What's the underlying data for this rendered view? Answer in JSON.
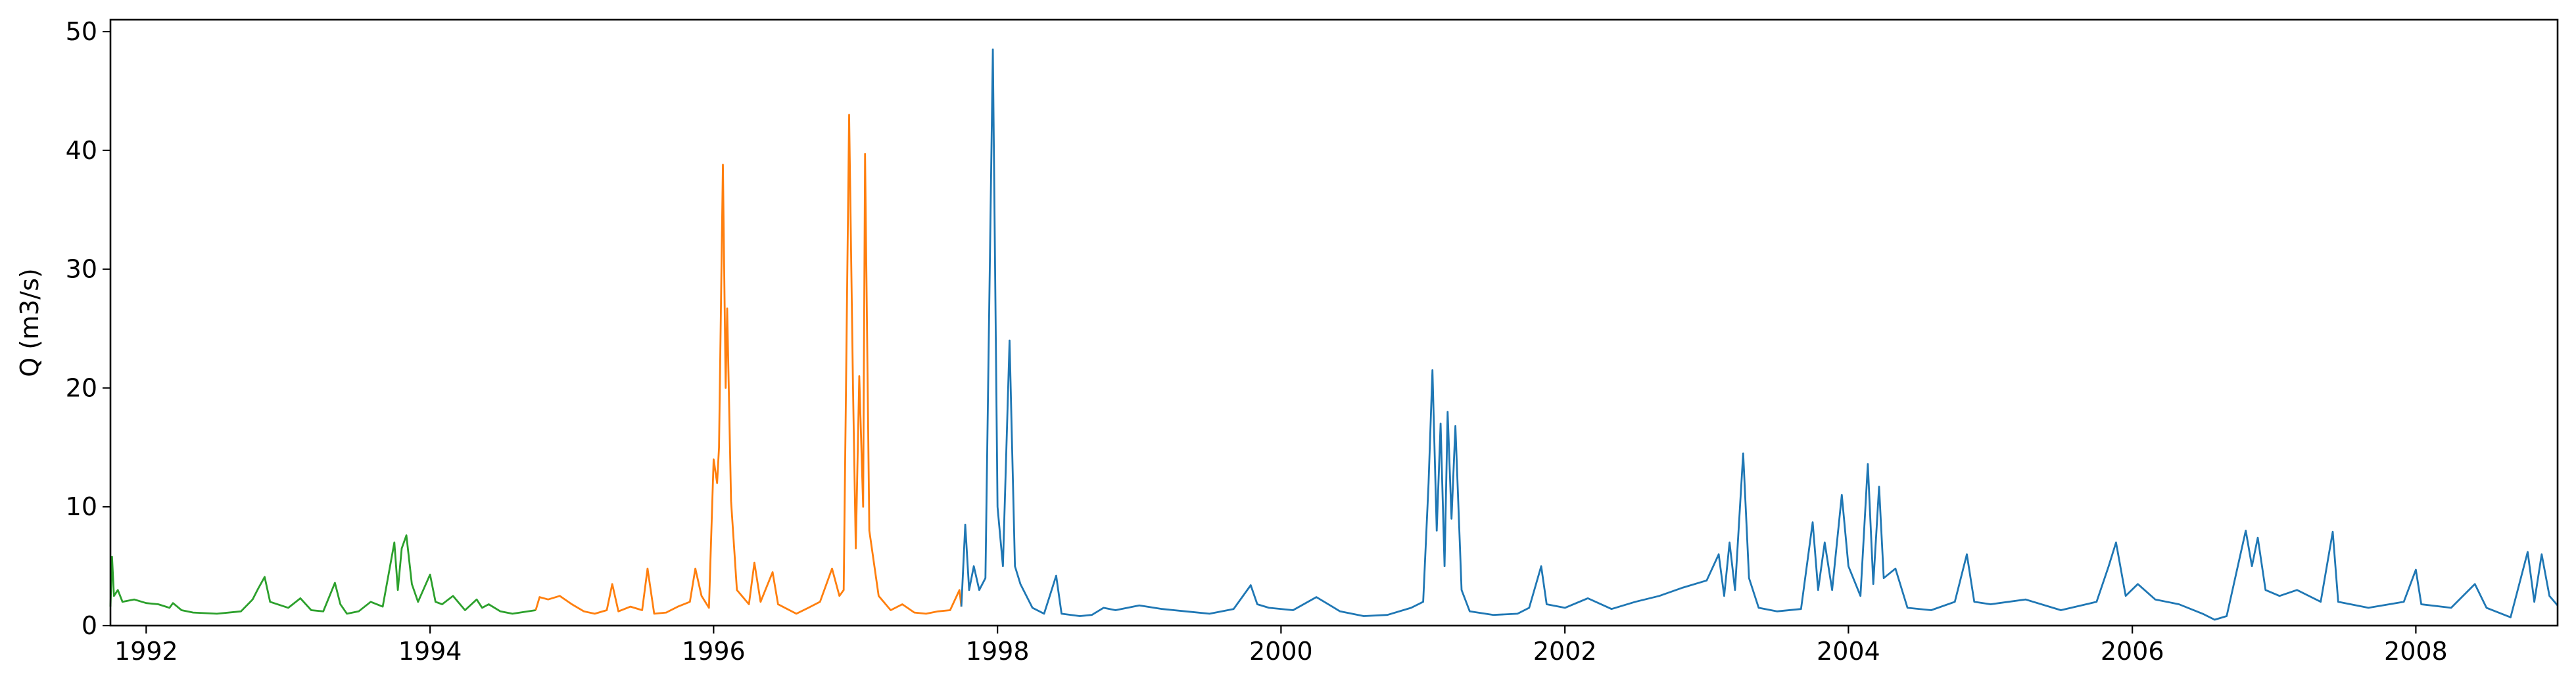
{
  "chart_data": {
    "type": "line",
    "title": "",
    "xlabel": "",
    "ylabel": "Q (m3/s)",
    "xlim": [
      "1991-10-01",
      "2008-12-31"
    ],
    "ylim": [
      0,
      51
    ],
    "x_ticks": [
      "1992",
      "1994",
      "1996",
      "1998",
      "2000",
      "2002",
      "2004",
      "2006",
      "2008"
    ],
    "y_ticks": [
      "0",
      "10",
      "20",
      "30",
      "40",
      "50"
    ],
    "grid": false,
    "legend": "none",
    "series": [
      {
        "color": "#2ca02c",
        "points": [
          [
            "1991-10-01",
            1.6
          ],
          [
            "1991-10-05",
            5.8
          ],
          [
            "1991-10-10",
            2.5
          ],
          [
            "1991-10-20",
            3.0
          ],
          [
            "1991-11-01",
            2.0
          ],
          [
            "1991-12-01",
            2.2
          ],
          [
            "1992-01-01",
            1.9
          ],
          [
            "1992-02-01",
            1.8
          ],
          [
            "1992-03-01",
            1.5
          ],
          [
            "1992-03-10",
            1.9
          ],
          [
            "1992-04-01",
            1.3
          ],
          [
            "1992-05-01",
            1.1
          ],
          [
            "1992-07-01",
            1.0
          ],
          [
            "1992-09-01",
            1.2
          ],
          [
            "1992-10-01",
            2.2
          ],
          [
            "1992-10-15",
            3.1
          ],
          [
            "1992-11-01",
            4.1
          ],
          [
            "1992-11-15",
            2.0
          ],
          [
            "1993-01-01",
            1.5
          ],
          [
            "1993-02-01",
            2.3
          ],
          [
            "1993-03-01",
            1.3
          ],
          [
            "1993-04-01",
            1.2
          ],
          [
            "1993-05-01",
            3.6
          ],
          [
            "1993-05-15",
            1.8
          ],
          [
            "1993-06-01",
            1.0
          ],
          [
            "1993-07-01",
            1.2
          ],
          [
            "1993-08-01",
            2.0
          ],
          [
            "1993-09-01",
            1.6
          ],
          [
            "1993-10-01",
            7.0
          ],
          [
            "1993-10-10",
            3.0
          ],
          [
            "1993-10-20",
            6.5
          ],
          [
            "1993-11-01",
            7.6
          ],
          [
            "1993-11-15",
            3.5
          ],
          [
            "1993-12-01",
            2.0
          ],
          [
            "1994-01-01",
            4.3
          ],
          [
            "1994-01-15",
            2.0
          ],
          [
            "1994-02-01",
            1.8
          ],
          [
            "1994-03-01",
            2.5
          ],
          [
            "1994-04-01",
            1.3
          ],
          [
            "1994-05-01",
            2.2
          ],
          [
            "1994-05-15",
            1.5
          ],
          [
            "1994-06-01",
            1.8
          ],
          [
            "1994-07-01",
            1.2
          ],
          [
            "1994-08-01",
            1.0
          ],
          [
            "1994-09-30",
            1.3
          ]
        ]
      },
      {
        "color": "#ff7f0e",
        "points": [
          [
            "1994-09-30",
            1.3
          ],
          [
            "1994-10-10",
            2.4
          ],
          [
            "1994-11-01",
            2.2
          ],
          [
            "1994-12-01",
            2.5
          ],
          [
            "1995-01-01",
            1.8
          ],
          [
            "1995-02-01",
            1.2
          ],
          [
            "1995-03-01",
            1.0
          ],
          [
            "1995-04-01",
            1.3
          ],
          [
            "1995-04-15",
            3.5
          ],
          [
            "1995-05-01",
            1.2
          ],
          [
            "1995-06-01",
            1.6
          ],
          [
            "1995-07-01",
            1.3
          ],
          [
            "1995-07-15",
            4.8
          ],
          [
            "1995-08-01",
            1.0
          ],
          [
            "1995-09-01",
            1.1
          ],
          [
            "1995-10-01",
            1.6
          ],
          [
            "1995-11-01",
            2.0
          ],
          [
            "1995-11-15",
            4.8
          ],
          [
            "1995-12-01",
            2.5
          ],
          [
            "1995-12-20",
            1.5
          ],
          [
            "1996-01-01",
            14.0
          ],
          [
            "1996-01-10",
            12.0
          ],
          [
            "1996-01-15",
            15.0
          ],
          [
            "1996-01-25",
            38.8
          ],
          [
            "1996-02-01",
            20.0
          ],
          [
            "1996-02-05",
            26.7
          ],
          [
            "1996-02-15",
            10.5
          ],
          [
            "1996-03-01",
            3.0
          ],
          [
            "1996-04-01",
            1.8
          ],
          [
            "1996-04-15",
            5.3
          ],
          [
            "1996-05-01",
            2.0
          ],
          [
            "1996-06-01",
            4.5
          ],
          [
            "1996-06-15",
            1.8
          ],
          [
            "1996-08-01",
            1.0
          ],
          [
            "1996-09-01",
            1.5
          ],
          [
            "1996-10-01",
            2.0
          ],
          [
            "1996-11-01",
            4.8
          ],
          [
            "1996-11-20",
            2.5
          ],
          [
            "1996-12-01",
            3.0
          ],
          [
            "1996-12-15",
            43.0
          ],
          [
            "1996-12-25",
            20.0
          ],
          [
            "1997-01-01",
            6.5
          ],
          [
            "1997-01-10",
            21.0
          ],
          [
            "1997-01-20",
            10.0
          ],
          [
            "1997-01-25",
            39.7
          ],
          [
            "1997-02-05",
            8.0
          ],
          [
            "1997-03-01",
            2.5
          ],
          [
            "1997-04-01",
            1.3
          ],
          [
            "1997-05-01",
            1.8
          ],
          [
            "1997-06-01",
            1.1
          ],
          [
            "1997-07-01",
            1.0
          ],
          [
            "1997-08-01",
            1.2
          ],
          [
            "1997-09-01",
            1.3
          ],
          [
            "1997-09-25",
            3.0
          ],
          [
            "1997-09-30",
            1.6
          ]
        ]
      },
      {
        "color": "#1f77b4",
        "points": [
          [
            "1997-09-30",
            1.6
          ],
          [
            "1997-10-10",
            8.5
          ],
          [
            "1997-10-20",
            3.0
          ],
          [
            "1997-11-01",
            5.0
          ],
          [
            "1997-11-15",
            3.0
          ],
          [
            "1997-12-01",
            4.0
          ],
          [
            "1997-12-20",
            48.5
          ],
          [
            "1998-01-01",
            10.0
          ],
          [
            "1998-01-15",
            5.0
          ],
          [
            "1998-02-01",
            24.0
          ],
          [
            "1998-02-15",
            5.0
          ],
          [
            "1998-03-01",
            3.5
          ],
          [
            "1998-04-01",
            1.5
          ],
          [
            "1998-05-01",
            1.0
          ],
          [
            "1998-06-01",
            4.2
          ],
          [
            "1998-06-15",
            1.0
          ],
          [
            "1998-08-01",
            0.8
          ],
          [
            "1998-09-01",
            0.9
          ],
          [
            "1998-10-01",
            1.5
          ],
          [
            "1998-11-01",
            1.3
          ],
          [
            "1999-01-01",
            1.7
          ],
          [
            "1999-03-01",
            1.4
          ],
          [
            "1999-05-01",
            1.2
          ],
          [
            "1999-07-01",
            1.0
          ],
          [
            "1999-09-01",
            1.4
          ],
          [
            "1999-10-15",
            3.4
          ],
          [
            "1999-11-01",
            1.8
          ],
          [
            "1999-12-01",
            1.5
          ],
          [
            "2000-02-01",
            1.3
          ],
          [
            "2000-04-01",
            2.4
          ],
          [
            "2000-06-01",
            1.2
          ],
          [
            "2000-08-01",
            0.8
          ],
          [
            "2000-10-01",
            0.9
          ],
          [
            "2000-12-01",
            1.5
          ],
          [
            "2001-01-01",
            2.0
          ],
          [
            "2001-01-15",
            12.0
          ],
          [
            "2001-01-25",
            21.5
          ],
          [
            "2001-02-05",
            8.0
          ],
          [
            "2001-02-15",
            17.0
          ],
          [
            "2001-02-25",
            5.0
          ],
          [
            "2001-03-05",
            18.0
          ],
          [
            "2001-03-15",
            9.0
          ],
          [
            "2001-03-25",
            16.8
          ],
          [
            "2001-04-10",
            3.0
          ],
          [
            "2001-05-01",
            1.2
          ],
          [
            "2001-07-01",
            0.9
          ],
          [
            "2001-09-01",
            1.0
          ],
          [
            "2001-10-01",
            1.5
          ],
          [
            "2001-11-01",
            5.0
          ],
          [
            "2001-11-15",
            1.8
          ],
          [
            "2002-01-01",
            1.5
          ],
          [
            "2002-03-01",
            2.3
          ],
          [
            "2002-05-01",
            1.4
          ],
          [
            "2002-07-01",
            2.0
          ],
          [
            "2002-09-01",
            2.5
          ],
          [
            "2002-11-01",
            3.2
          ],
          [
            "2003-01-01",
            3.8
          ],
          [
            "2003-02-01",
            6.0
          ],
          [
            "2003-02-15",
            2.5
          ],
          [
            "2003-03-01",
            7.0
          ],
          [
            "2003-03-15",
            3.0
          ],
          [
            "2003-04-05",
            14.5
          ],
          [
            "2003-04-20",
            4.0
          ],
          [
            "2003-05-15",
            1.5
          ],
          [
            "2003-07-01",
            1.2
          ],
          [
            "2003-09-01",
            1.4
          ],
          [
            "2003-10-01",
            8.7
          ],
          [
            "2003-10-15",
            3.0
          ],
          [
            "2003-11-01",
            7.0
          ],
          [
            "2003-11-20",
            3.0
          ],
          [
            "2003-12-15",
            11.0
          ],
          [
            "2004-01-01",
            5.0
          ],
          [
            "2004-02-01",
            2.5
          ],
          [
            "2004-02-20",
            13.6
          ],
          [
            "2004-03-05",
            3.5
          ],
          [
            "2004-03-20",
            11.7
          ],
          [
            "2004-04-01",
            4.0
          ],
          [
            "2004-05-01",
            4.8
          ],
          [
            "2004-06-01",
            1.5
          ],
          [
            "2004-08-01",
            1.3
          ],
          [
            "2004-10-01",
            2.0
          ],
          [
            "2004-11-01",
            6.0
          ],
          [
            "2004-11-20",
            2.0
          ],
          [
            "2005-01-01",
            1.8
          ],
          [
            "2005-04-01",
            2.2
          ],
          [
            "2005-07-01",
            1.3
          ],
          [
            "2005-10-01",
            2.0
          ],
          [
            "2005-11-01",
            5.0
          ],
          [
            "2005-11-20",
            7.0
          ],
          [
            "2005-12-15",
            2.5
          ],
          [
            "2006-01-15",
            3.5
          ],
          [
            "2006-03-01",
            2.2
          ],
          [
            "2006-05-01",
            1.8
          ],
          [
            "2006-07-01",
            1.0
          ],
          [
            "2006-08-01",
            0.5
          ],
          [
            "2006-09-01",
            0.8
          ],
          [
            "2006-10-20",
            8.0
          ],
          [
            "2006-11-05",
            5.0
          ],
          [
            "2006-11-20",
            7.4
          ],
          [
            "2006-12-10",
            3.0
          ],
          [
            "2007-01-15",
            2.5
          ],
          [
            "2007-03-01",
            3.0
          ],
          [
            "2007-05-01",
            2.0
          ],
          [
            "2007-06-01",
            7.9
          ],
          [
            "2007-06-15",
            2.0
          ],
          [
            "2007-09-01",
            1.5
          ],
          [
            "2007-12-01",
            2.0
          ],
          [
            "2008-01-01",
            4.7
          ],
          [
            "2008-01-15",
            1.8
          ],
          [
            "2008-04-01",
            1.5
          ],
          [
            "2008-06-01",
            3.5
          ],
          [
            "2008-07-01",
            1.5
          ],
          [
            "2008-09-01",
            0.7
          ],
          [
            "2008-10-15",
            6.2
          ],
          [
            "2008-11-01",
            2.0
          ],
          [
            "2008-11-20",
            6.0
          ],
          [
            "2008-12-10",
            2.5
          ],
          [
            "2008-12-31",
            1.7
          ]
        ]
      }
    ]
  }
}
